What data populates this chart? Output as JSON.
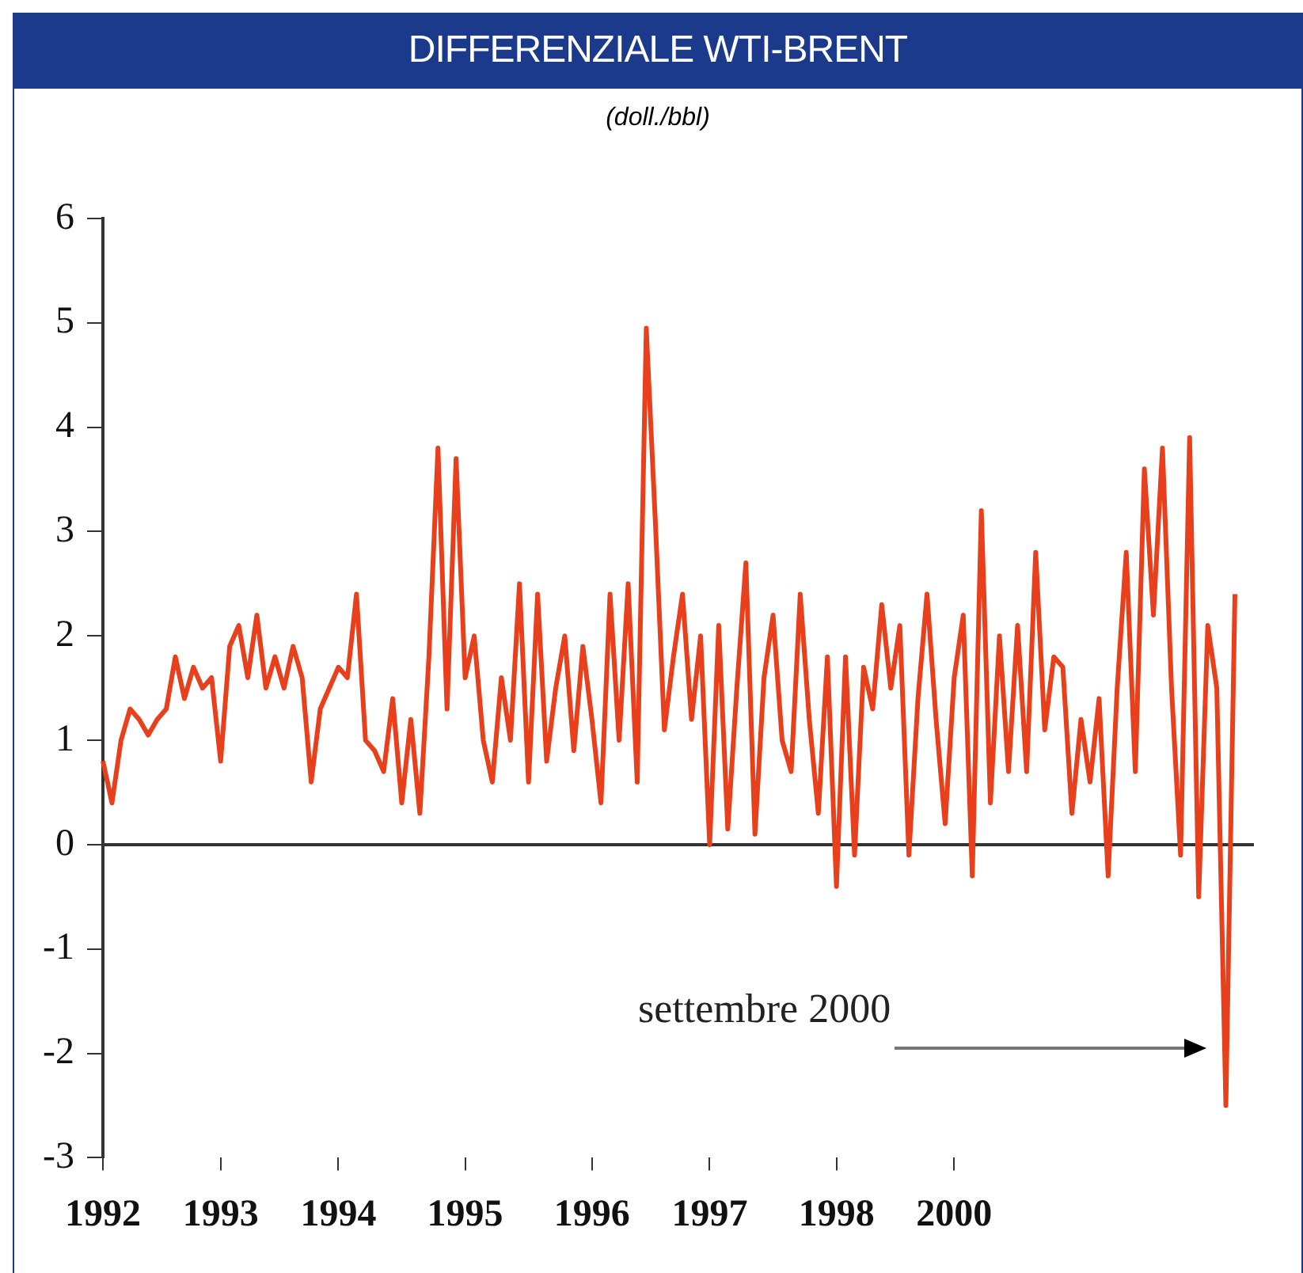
{
  "chart_data": {
    "type": "line",
    "title": "DIFFERENZIALE WTI-BRENT",
    "subtitle": "(doll./bbl)",
    "categories": [
      "1992",
      null,
      null,
      null,
      null,
      null,
      null,
      null,
      null,
      null,
      null,
      null,
      null,
      "1993",
      null,
      null,
      null,
      null,
      null,
      null,
      null,
      null,
      null,
      null,
      null,
      null,
      "1994",
      null,
      null,
      null,
      null,
      null,
      null,
      null,
      null,
      null,
      null,
      null,
      null,
      null,
      "1995",
      null,
      null,
      null,
      null,
      null,
      null,
      null,
      null,
      null,
      null,
      null,
      null,
      null,
      "1996",
      null,
      null,
      null,
      null,
      null,
      null,
      null,
      null,
      null,
      null,
      null,
      null,
      "1997",
      null,
      null,
      null,
      null,
      null,
      null,
      null,
      null,
      null,
      null,
      null,
      null,
      null,
      "1998",
      null,
      null,
      null,
      null,
      null,
      null,
      null,
      null,
      null,
      null,
      null,
      null,
      "2000",
      null,
      null,
      null,
      null,
      null,
      null,
      null,
      null,
      null,
      null,
      null,
      null,
      null,
      null,
      null,
      null,
      null,
      null,
      null,
      null,
      null,
      null,
      null,
      null,
      null,
      null,
      null,
      null,
      null,
      null,
      null
    ],
    "series": [
      {
        "color": "#e8401c",
        "values": [
          0.8,
          0.4,
          1.0,
          1.3,
          1.2,
          1.05,
          1.2,
          1.3,
          1.8,
          1.4,
          1.7,
          1.5,
          1.6,
          0.8,
          1.9,
          2.1,
          1.6,
          2.2,
          1.5,
          1.8,
          1.5,
          1.9,
          1.6,
          0.6,
          1.3,
          1.5,
          1.7,
          1.6,
          2.4,
          1.0,
          0.9,
          0.7,
          1.4,
          0.4,
          1.2,
          0.3,
          1.8,
          3.8,
          1.3,
          3.7,
          1.6,
          2.0,
          1.0,
          0.6,
          1.6,
          1.0,
          2.5,
          0.6,
          2.4,
          0.8,
          1.5,
          2.0,
          0.9,
          1.9,
          1.2,
          0.4,
          2.4,
          1.0,
          2.5,
          0.6,
          4.95,
          3.1,
          1.1,
          1.8,
          2.4,
          1.2,
          2.0,
          0.0,
          2.1,
          0.15,
          1.5,
          2.7,
          0.1,
          1.6,
          2.2,
          1.0,
          0.7,
          2.4,
          1.2,
          0.3,
          1.8,
          -0.4,
          1.8,
          -0.1,
          1.7,
          1.3,
          2.3,
          1.5,
          2.1,
          -0.1,
          1.4,
          2.4,
          1.2,
          0.2,
          1.6,
          2.2,
          -0.3,
          3.2,
          0.4,
          2.0,
          0.7,
          2.1,
          0.7,
          2.8,
          1.1,
          1.8,
          1.7,
          0.3,
          1.2,
          0.6,
          1.4,
          -0.3,
          1.5,
          2.8,
          0.7,
          3.6,
          2.2,
          3.8,
          1.5,
          -0.1,
          3.9,
          -0.5,
          2.1,
          1.5,
          -2.5,
          2.4
        ]
      }
    ],
    "ylim": [
      -3,
      6
    ],
    "yticks": [
      -3,
      -2,
      -1,
      0,
      1,
      2,
      3,
      4,
      5,
      6
    ],
    "ref_lines": [
      {
        "axis": "y",
        "value": 0,
        "color": "#333333"
      }
    ],
    "annotations": [
      "settembre 2000"
    ],
    "grid": false,
    "legend": false,
    "marker": "none",
    "line_style": "solid"
  }
}
